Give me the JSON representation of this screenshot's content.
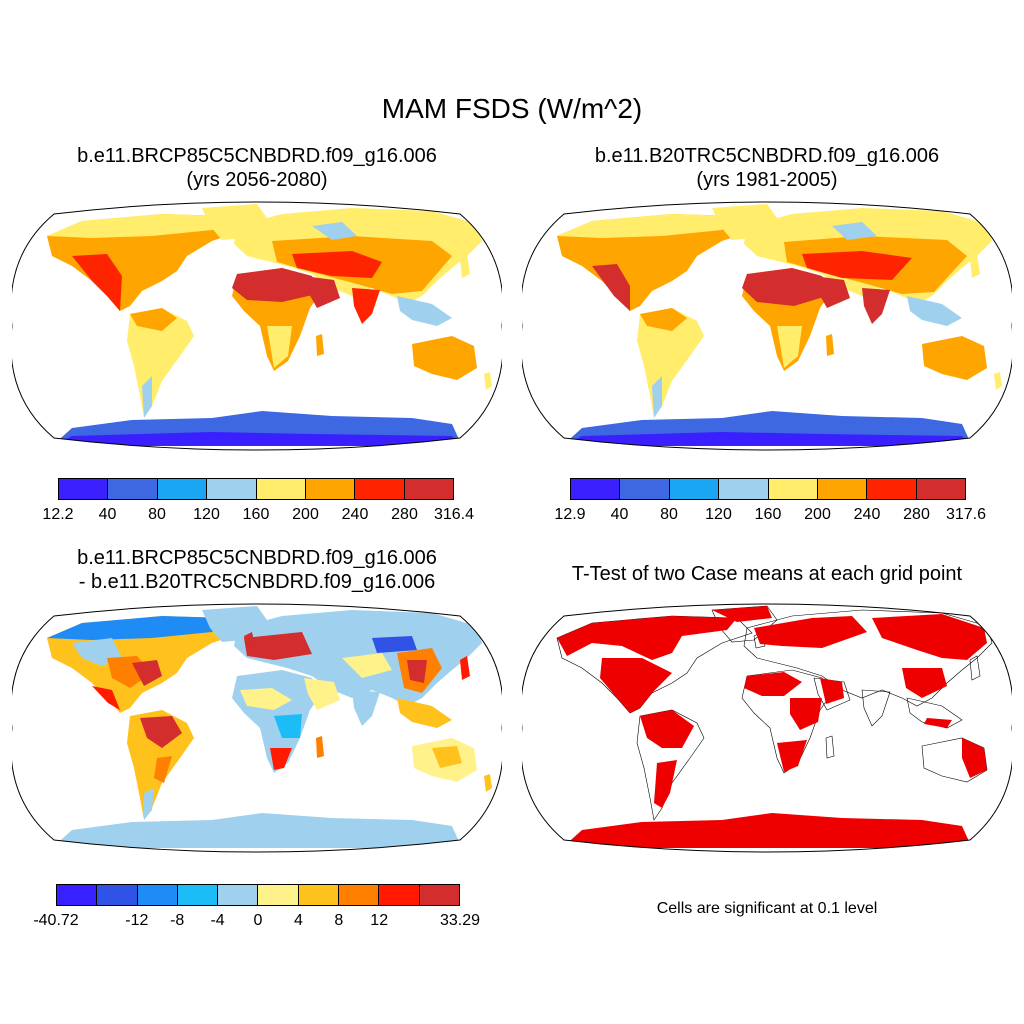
{
  "main_title": "MAM FSDS (W/m^2)",
  "panels": {
    "top_left": {
      "title_line1": "b.e11.BRCP85C5CNBDRD.f09_g16.006",
      "title_line2": "(yrs 2056-2080)",
      "colorbar_labels": [
        "12.2",
        "40",
        "80",
        "120",
        "160",
        "200",
        "240",
        "280",
        "316.4"
      ]
    },
    "top_right": {
      "title_line1": "b.e11.B20TRC5CNBDRD.f09_g16.006",
      "title_line2": "(yrs 1981-2005)",
      "colorbar_labels": [
        "12.9",
        "40",
        "80",
        "120",
        "160",
        "200",
        "240",
        "280",
        "317.6"
      ]
    },
    "bottom_left": {
      "title_line1": "b.e11.BRCP85C5CNBDRD.f09_g16.006",
      "title_line2": "- b.e11.B20TRC5CNBDRD.f09_g16.006",
      "colorbar_labels": [
        "-40.72",
        "-12",
        "-8",
        "-4",
        "0",
        "4",
        "8",
        "12",
        "33.29"
      ]
    },
    "bottom_right": {
      "title_line1": "T-Test of two Case means at each grid point",
      "note": "Cells are significant at 0.1 level"
    }
  },
  "colors": {
    "abs_scale": [
      "#3a1fff",
      "#3e67e2",
      "#1aa6f2",
      "#9fd1ef",
      "#ffed6b",
      "#ffa500",
      "#ff2400",
      "#d32d2d"
    ],
    "diff_scale": [
      "#3a1fff",
      "#3053e6",
      "#1f8cf5",
      "#1cbdf6",
      "#9fd1ef",
      "#fff28a",
      "#ffc21c",
      "#ff8000",
      "#ff1a00",
      "#d32d2d"
    ],
    "significant": "#ee0000"
  }
}
